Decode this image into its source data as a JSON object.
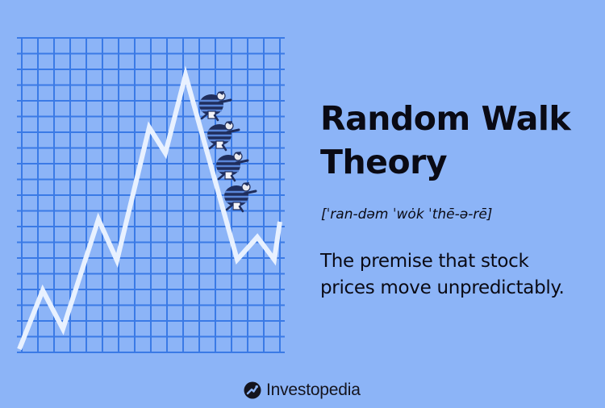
{
  "heading": {
    "line1": "Random Walk",
    "line2": "Theory"
  },
  "pronunciation": "[ˈran-dəm ˈwȯk ˈthē-ə-rē]",
  "definition": {
    "line1": "The premise that stock",
    "line2": "prices move unpredictably."
  },
  "brand": {
    "name": "Investopedia"
  },
  "colors": {
    "background": "#8cb4f7",
    "grid": "#3a7ae6",
    "line": "#e8f1ff",
    "text": "#0a0a14",
    "figure_dark": "#1f2d5c",
    "figure_stripe": "#5a86d8"
  },
  "icons": {
    "brand_logo": "investopedia-logo-icon",
    "figures": "climbing-people-illustration"
  }
}
